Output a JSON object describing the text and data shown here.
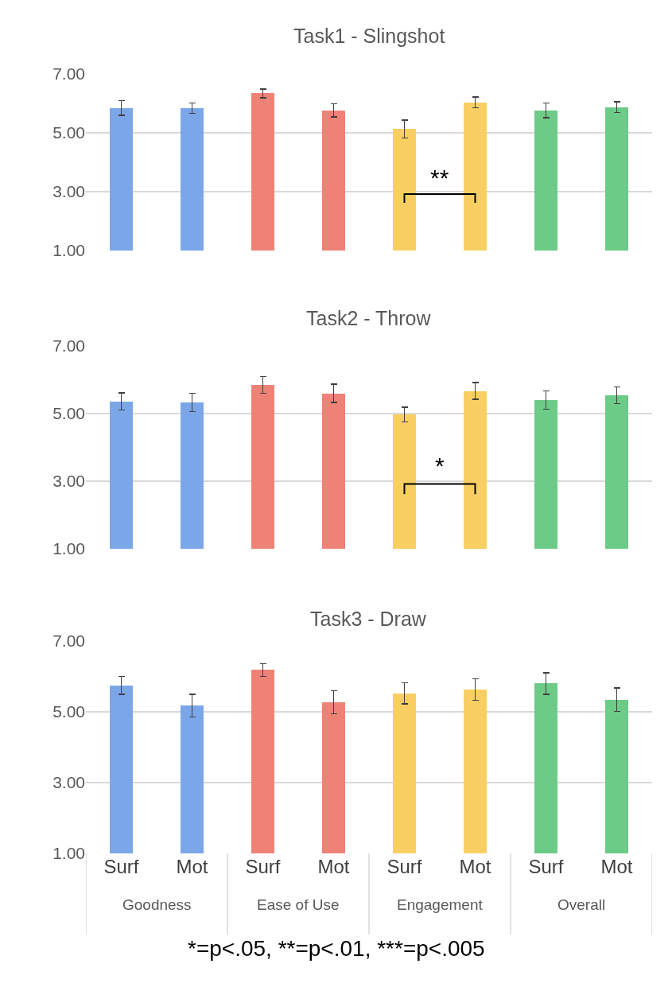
{
  "chart_data": [
    {
      "type": "bar",
      "title": "Task1 - Slingshot",
      "categories": [
        null,
        null,
        null,
        null,
        null,
        null,
        null,
        null
      ],
      "values": [
        5.85,
        5.84,
        6.34,
        5.76,
        5.13,
        6.03,
        5.76,
        5.87
      ],
      "errors": [
        0.25,
        0.18,
        0.15,
        0.22,
        0.3,
        0.18,
        0.25,
        0.18
      ],
      "colors": [
        "#7ba7e8",
        "#7ba7e8",
        "#ee8277",
        "#ee8277",
        "#f9cf63",
        "#f9cf63",
        "#6ccb86",
        "#6ccb86"
      ],
      "ylim": [
        1,
        7
      ],
      "yticks": [
        {
          "value": 1,
          "label": "1.00"
        },
        {
          "value": 3,
          "label": "3.00"
        },
        {
          "value": 5,
          "label": "5.00"
        },
        {
          "value": 7,
          "label": "7.00"
        }
      ],
      "grid": "y",
      "tick_labels": "y",
      "annotations": [
        "**"
      ]
    },
    {
      "type": "bar",
      "title": "Task2 - Throw",
      "categories": [
        null,
        null,
        null,
        null,
        null,
        null,
        null,
        null
      ],
      "values": [
        5.36,
        5.33,
        5.85,
        5.6,
        4.97,
        5.67,
        5.4,
        5.54
      ],
      "errors": [
        0.25,
        0.27,
        0.25,
        0.27,
        0.22,
        0.25,
        0.27,
        0.25
      ],
      "colors": [
        "#7ba7e8",
        "#7ba7e8",
        "#ee8277",
        "#ee8277",
        "#f9cf63",
        "#f9cf63",
        "#6ccb86",
        "#6ccb86"
      ],
      "ylim": [
        1,
        7
      ],
      "yticks": [
        {
          "value": 1,
          "label": "1.00"
        },
        {
          "value": 3,
          "label": "3.00"
        },
        {
          "value": 5,
          "label": "5.00"
        },
        {
          "value": 7,
          "label": "7.00"
        }
      ],
      "grid": "y",
      "tick_labels": "y",
      "annotations": [
        "*"
      ]
    },
    {
      "type": "bar",
      "title": "Task3 - Draw",
      "categories": [
        "Surf",
        "Mot",
        "Surf",
        "Mot",
        "Surf",
        "Mot",
        "Surf",
        "Mot"
      ],
      "values": [
        5.75,
        5.17,
        6.18,
        5.27,
        5.52,
        5.63,
        5.8,
        5.34
      ],
      "errors": [
        0.25,
        0.32,
        0.18,
        0.33,
        0.3,
        0.3,
        0.3,
        0.33
      ],
      "colors": [
        "#7ba7e8",
        "#7ba7e8",
        "#ee8277",
        "#ee8277",
        "#f9cf63",
        "#f9cf63",
        "#6ccb86",
        "#6ccb86"
      ],
      "ylim": [
        1,
        7
      ],
      "yticks": [
        {
          "value": 1,
          "label": "1.00"
        },
        {
          "value": 3,
          "label": "3.00"
        },
        {
          "value": 5,
          "label": "5.00"
        },
        {
          "value": 7,
          "label": "7.00"
        }
      ],
      "grid": "y",
      "annotations": [
        "Goodness",
        "Ease of Use",
        "Engagement",
        "Overall",
        "*=p<.05, **=p<.01, ***=p<.005"
      ]
    }
  ]
}
